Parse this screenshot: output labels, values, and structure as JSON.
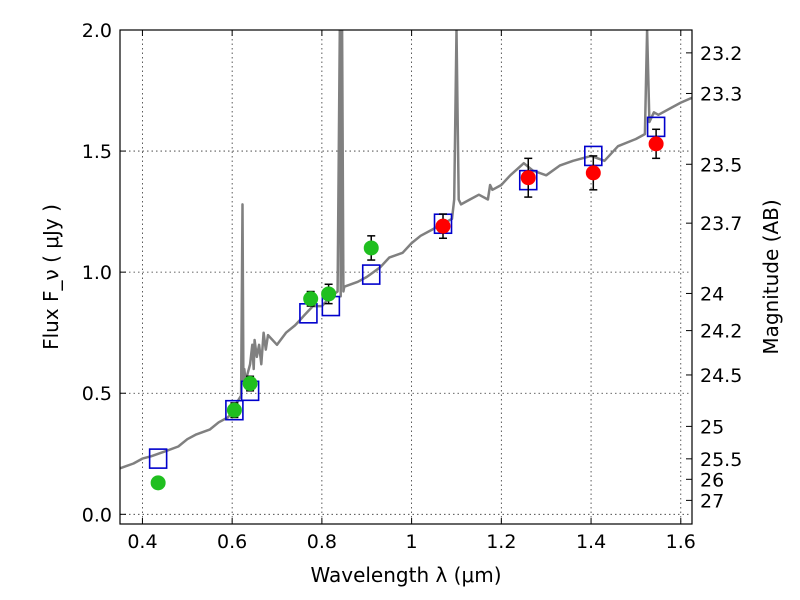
{
  "chart_data": {
    "type": "scatter",
    "title": "",
    "xlabel": "Wavelength  λ (μm)",
    "ylabel": "Flux  F_ν  ( μJy )",
    "y2label": "Magnitude (AB)",
    "xlim": [
      0.35,
      1.625
    ],
    "ylim": [
      -0.04,
      2.0
    ],
    "grid": true,
    "legend": "none",
    "x_ticks": [
      0.4,
      0.6,
      0.8,
      1.0,
      1.2,
      1.4,
      1.6
    ],
    "x_tick_labels": [
      "0.4",
      "0.6",
      "0.8",
      "1",
      "1.2",
      "1.4",
      "1.6"
    ],
    "y_ticks": [
      0.0,
      0.5,
      1.0,
      1.5,
      2.0
    ],
    "y_tick_labels": [
      "0.0",
      "0.5",
      "1.0",
      "1.5",
      "2.0"
    ],
    "mag_ticks": [
      23.2,
      23.3,
      23.5,
      23.7,
      24,
      24.2,
      24.5,
      25,
      25.5,
      26,
      27
    ],
    "mag_tick_labels": [
      "23.2",
      "23.3",
      "23.5",
      "23.7",
      "24",
      "24.2",
      "24.5",
      "25",
      "25.5",
      "26",
      "27"
    ],
    "colors": {
      "optical": "#1fbf1f",
      "nir": "#ff0000",
      "model": "#0000cc",
      "spectrum": "#808080"
    },
    "series": [
      {
        "kind": "spectrum",
        "x": [
          0.35,
          0.38,
          0.4,
          0.42,
          0.45,
          0.48,
          0.5,
          0.52,
          0.55,
          0.57,
          0.59,
          0.6,
          0.61,
          0.62,
          0.623,
          0.625,
          0.627,
          0.63,
          0.64,
          0.645,
          0.648,
          0.65,
          0.655,
          0.66,
          0.665,
          0.67,
          0.675,
          0.68,
          0.7,
          0.72,
          0.74,
          0.75,
          0.76,
          0.77,
          0.78,
          0.8,
          0.82,
          0.835,
          0.84,
          0.842,
          0.845,
          0.848,
          0.85,
          0.88,
          0.9,
          0.93,
          0.95,
          0.98,
          1.0,
          1.02,
          1.05,
          1.07,
          1.09,
          1.095,
          1.1,
          1.105,
          1.11,
          1.13,
          1.15,
          1.17,
          1.175,
          1.18,
          1.2,
          1.22,
          1.25,
          1.27,
          1.3,
          1.33,
          1.36,
          1.4,
          1.43,
          1.46,
          1.5,
          1.52,
          1.525,
          1.53,
          1.54,
          1.55,
          1.58,
          1.6,
          1.625
        ],
        "y": [
          0.19,
          0.21,
          0.23,
          0.24,
          0.26,
          0.28,
          0.31,
          0.33,
          0.35,
          0.38,
          0.4,
          0.42,
          0.46,
          0.49,
          1.28,
          0.55,
          0.6,
          0.55,
          0.62,
          0.7,
          0.6,
          0.72,
          0.65,
          0.7,
          0.62,
          0.75,
          0.68,
          0.74,
          0.7,
          0.75,
          0.78,
          0.8,
          0.82,
          0.84,
          0.86,
          0.86,
          0.9,
          0.92,
          2.0,
          0.9,
          2.0,
          0.92,
          0.94,
          0.96,
          0.98,
          1.02,
          1.06,
          1.08,
          1.12,
          1.15,
          1.18,
          1.2,
          1.22,
          1.3,
          2.0,
          1.3,
          1.28,
          1.3,
          1.32,
          1.3,
          1.36,
          1.34,
          1.36,
          1.4,
          1.45,
          1.42,
          1.4,
          1.44,
          1.46,
          1.48,
          1.46,
          1.52,
          1.55,
          1.57,
          2.0,
          1.62,
          1.66,
          1.65,
          1.68,
          1.7,
          1.72
        ]
      },
      {
        "name": "",
        "kind": "model-squares",
        "x": [
          0.435,
          0.605,
          0.64,
          0.77,
          0.82,
          0.91,
          1.07,
          1.26,
          1.405,
          1.545
        ],
        "y": [
          0.23,
          0.43,
          0.51,
          0.83,
          0.86,
          0.99,
          1.2,
          1.38,
          1.48,
          1.6
        ]
      },
      {
        "name": "",
        "kind": "optical-points",
        "x": [
          0.435,
          0.605,
          0.64,
          0.775,
          0.815,
          0.91
        ],
        "y": [
          0.13,
          0.43,
          0.54,
          0.89,
          0.91,
          1.1
        ],
        "err": [
          0.0,
          0.03,
          0.03,
          0.03,
          0.04,
          0.05
        ]
      },
      {
        "name": "",
        "kind": "nir-points",
        "x": [
          1.07,
          1.26,
          1.405,
          1.545
        ],
        "y": [
          1.19,
          1.39,
          1.41,
          1.53
        ],
        "err": [
          0.05,
          0.08,
          0.07,
          0.06
        ]
      }
    ]
  }
}
